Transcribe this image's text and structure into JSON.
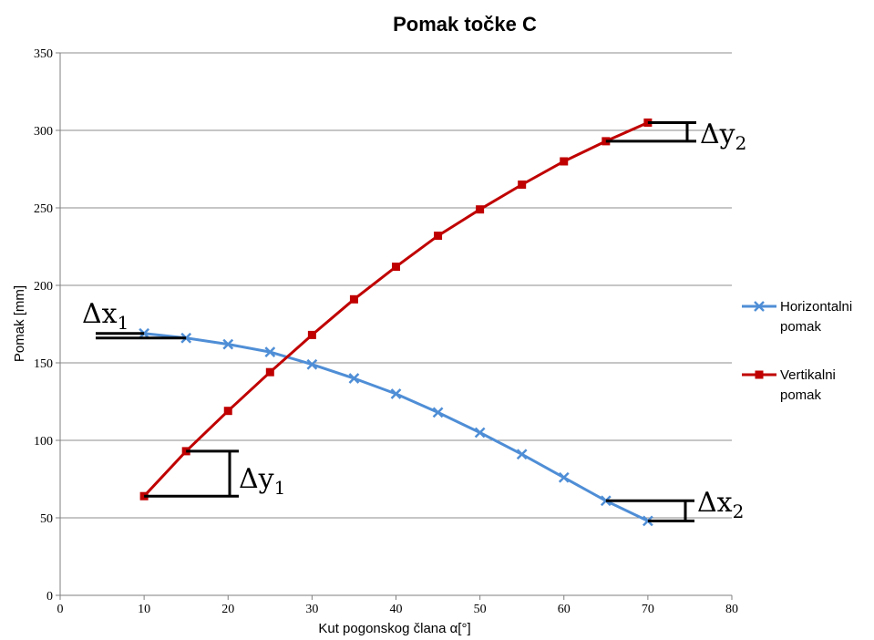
{
  "chart_data": {
    "type": "line",
    "title": "Pomak točke C",
    "xlabel": "Kut pogonskog člana α[°]",
    "ylabel": "Pomak  [mm]",
    "xlim": [
      0,
      80
    ],
    "ylim": [
      0,
      350
    ],
    "x_ticks": [
      "0",
      "10",
      "20",
      "30",
      "40",
      "50",
      "60",
      "70",
      "80"
    ],
    "y_ticks": [
      "0",
      "50",
      "100",
      "150",
      "200",
      "250",
      "300",
      "350"
    ],
    "grid": "horizontal",
    "legend_position": "right",
    "x": [
      10,
      15,
      20,
      25,
      30,
      35,
      40,
      45,
      50,
      55,
      60,
      65,
      70
    ],
    "series": [
      {
        "name": "Horizontalni pomak",
        "legend_lines": [
          "Horizontalni",
          "pomak"
        ],
        "color": "#4f8ed6",
        "marker": "x",
        "values": [
          169,
          166,
          162,
          157,
          149,
          140,
          130,
          118,
          105,
          91,
          76,
          61,
          48
        ]
      },
      {
        "name": "Vertikalni pomak",
        "legend_lines": [
          "Vertikalni",
          "pomak"
        ],
        "color": "#c00000",
        "marker": "square",
        "values": [
          64,
          93,
          119,
          144,
          168,
          191,
          212,
          232,
          249,
          265,
          280,
          293,
          305
        ]
      }
    ],
    "annotations": [
      {
        "symbol": "Δx",
        "sub": "1"
      },
      {
        "symbol": "Δy",
        "sub": "1"
      },
      {
        "symbol": "Δx",
        "sub": "2"
      },
      {
        "symbol": "Δy",
        "sub": "2"
      }
    ]
  }
}
